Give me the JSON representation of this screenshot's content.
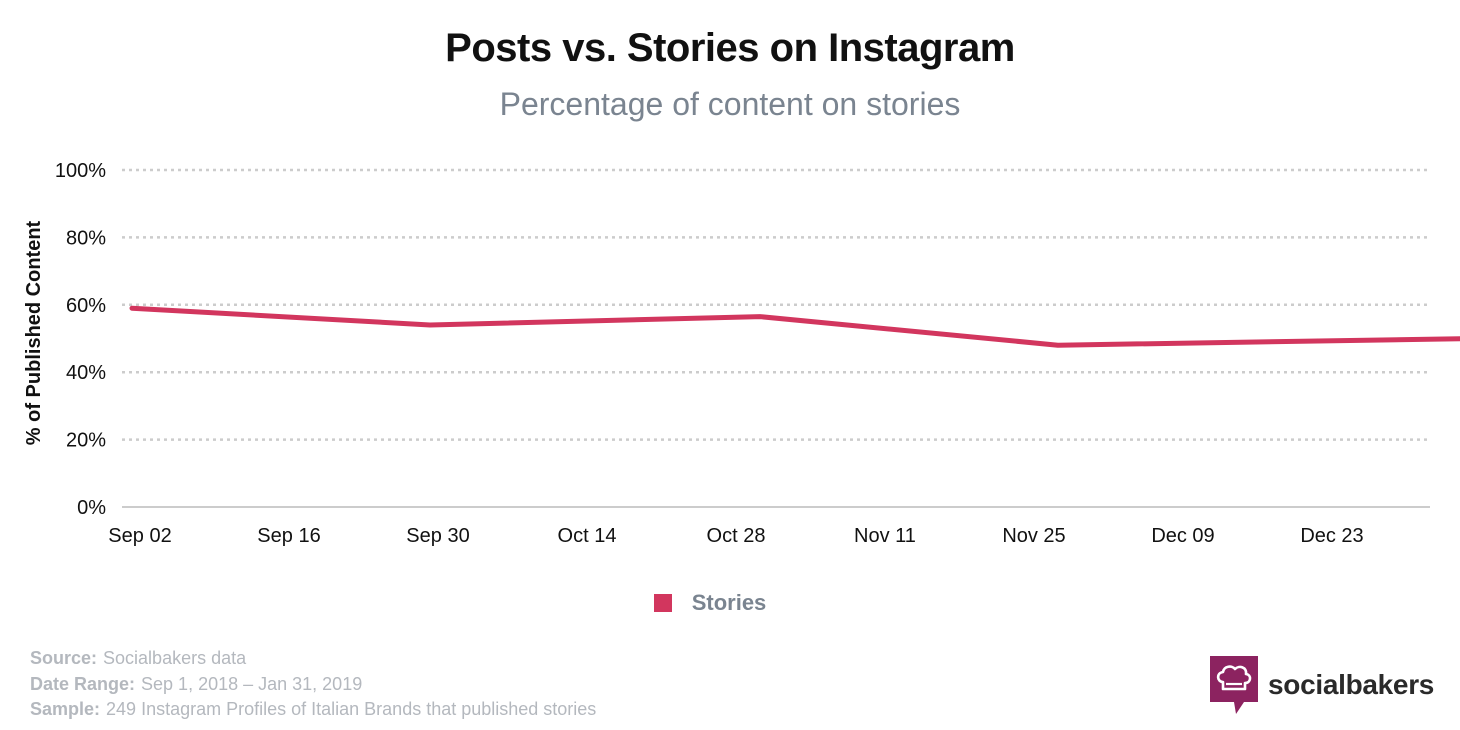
{
  "header": {
    "title": "Posts vs. Stories on Instagram",
    "subtitle": "Percentage of content on stories"
  },
  "chart_data": {
    "type": "line",
    "title": "Posts vs. Stories on Instagram",
    "subtitle": "Percentage of content on stories",
    "ylabel": "% of Published Content",
    "xlabel": "",
    "x_ticks": [
      "Sep 02",
      "Sep 16",
      "Sep 30",
      "Oct 14",
      "Oct 28",
      "Nov 11",
      "Nov 25",
      "Dec 09",
      "Dec 23"
    ],
    "y_ticks": [
      "0%",
      "20%",
      "40%",
      "60%",
      "80%",
      "100%"
    ],
    "ylim": [
      0,
      100
    ],
    "grid": true,
    "legend_position": "bottom-center",
    "series": [
      {
        "name": "Stories",
        "color": "#d2365e",
        "points": [
          {
            "x": "2018-09-02",
            "y": 59
          },
          {
            "x": "2018-09-30",
            "y": 54
          },
          {
            "x": "2018-10-31",
            "y": 56.5
          },
          {
            "x": "2018-11-28",
            "y": 48
          },
          {
            "x": "2019-01-06",
            "y": 50
          }
        ]
      }
    ]
  },
  "legend": {
    "label": "Stories",
    "color": "#d2365e"
  },
  "footer": {
    "source_label": "Source:",
    "source_value": "Socialbakers data",
    "range_label": "Date Range:",
    "range_value": "Sep 1, 2018  – Jan 31, 2019",
    "sample_label": "Sample:",
    "sample_value": "249 Instagram Profiles of Italian Brands that published stories"
  },
  "logo": {
    "text": "socialbakers",
    "color": "#8c2360",
    "icon": "chef-hat-icon"
  }
}
